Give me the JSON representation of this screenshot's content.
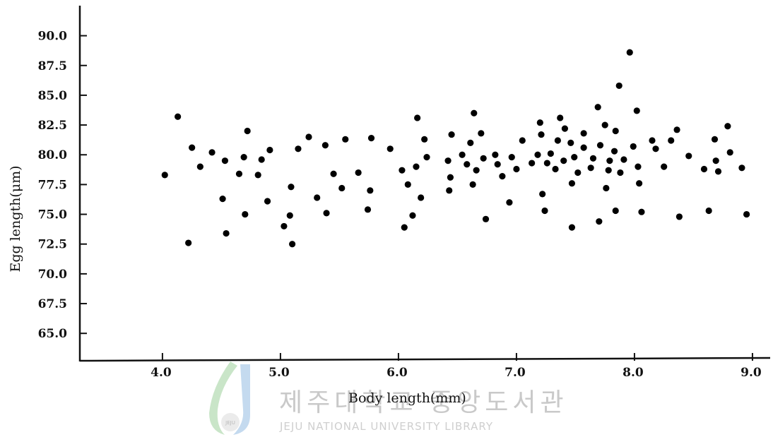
{
  "chart_data": {
    "type": "scatter",
    "xlabel": "Body length(mm)",
    "ylabel": "Egg length(μm)",
    "xlim": [
      3.3,
      9.15
    ],
    "ylim": [
      62.7,
      93.0
    ],
    "xticks": [
      4.0,
      5.0,
      6.0,
      7.0,
      8.0,
      9.0
    ],
    "xtick_labels": [
      "4.0",
      "5.0",
      "6.0",
      "7.0",
      "8.0",
      "9.0"
    ],
    "yticks": [
      65.0,
      67.5,
      70.0,
      72.5,
      75.0,
      77.5,
      80.0,
      82.5,
      85.0,
      87.5,
      90.0
    ],
    "ytick_labels": [
      "65.0",
      "67.5",
      "70.0",
      "72.5",
      "75.0",
      "77.5",
      "80.0",
      "82.5",
      "85.0",
      "87.5",
      "90.0"
    ],
    "grid": false,
    "marker_color": "#000000",
    "points": [
      [
        4.02,
        78.3
      ],
      [
        4.13,
        83.2
      ],
      [
        4.22,
        72.6
      ],
      [
        4.25,
        80.6
      ],
      [
        4.32,
        79.0
      ],
      [
        4.42,
        80.2
      ],
      [
        4.51,
        76.3
      ],
      [
        4.53,
        79.5
      ],
      [
        4.54,
        73.4
      ],
      [
        4.65,
        78.4
      ],
      [
        4.69,
        79.8
      ],
      [
        4.7,
        75.0
      ],
      [
        4.72,
        82.0
      ],
      [
        4.81,
        78.3
      ],
      [
        4.84,
        79.6
      ],
      [
        4.89,
        76.1
      ],
      [
        4.91,
        80.4
      ],
      [
        5.03,
        74.0
      ],
      [
        5.08,
        74.9
      ],
      [
        5.09,
        77.3
      ],
      [
        5.1,
        72.5
      ],
      [
        5.15,
        80.5
      ],
      [
        5.24,
        81.5
      ],
      [
        5.31,
        76.4
      ],
      [
        5.38,
        80.8
      ],
      [
        5.39,
        75.1
      ],
      [
        5.45,
        78.4
      ],
      [
        5.52,
        77.2
      ],
      [
        5.55,
        81.3
      ],
      [
        5.66,
        78.5
      ],
      [
        5.74,
        75.4
      ],
      [
        5.76,
        77.0
      ],
      [
        5.77,
        81.4
      ],
      [
        5.93,
        80.5
      ],
      [
        6.03,
        78.7
      ],
      [
        6.05,
        73.9
      ],
      [
        6.08,
        77.5
      ],
      [
        6.12,
        74.9
      ],
      [
        6.15,
        79.0
      ],
      [
        6.16,
        83.1
      ],
      [
        6.19,
        76.4
      ],
      [
        6.22,
        81.3
      ],
      [
        6.24,
        79.8
      ],
      [
        6.42,
        79.5
      ],
      [
        6.43,
        77.0
      ],
      [
        6.44,
        78.1
      ],
      [
        6.45,
        81.7
      ],
      [
        6.54,
        80.0
      ],
      [
        6.58,
        79.2
      ],
      [
        6.61,
        81.0
      ],
      [
        6.63,
        77.5
      ],
      [
        6.64,
        83.5
      ],
      [
        6.66,
        78.7
      ],
      [
        6.7,
        81.8
      ],
      [
        6.72,
        79.7
      ],
      [
        6.74,
        74.6
      ],
      [
        6.82,
        80.0
      ],
      [
        6.84,
        79.2
      ],
      [
        6.88,
        78.2
      ],
      [
        6.94,
        76.0
      ],
      [
        6.96,
        79.8
      ],
      [
        7.0,
        78.8
      ],
      [
        7.05,
        81.2
      ],
      [
        7.13,
        79.3
      ],
      [
        7.18,
        80.0
      ],
      [
        7.2,
        82.7
      ],
      [
        7.21,
        81.7
      ],
      [
        7.22,
        76.7
      ],
      [
        7.24,
        75.3
      ],
      [
        7.26,
        79.3
      ],
      [
        7.29,
        80.1
      ],
      [
        7.33,
        78.8
      ],
      [
        7.35,
        81.2
      ],
      [
        7.37,
        83.1
      ],
      [
        7.4,
        79.5
      ],
      [
        7.41,
        82.2
      ],
      [
        7.46,
        81.0
      ],
      [
        7.47,
        77.6
      ],
      [
        7.47,
        73.9
      ],
      [
        7.49,
        79.8
      ],
      [
        7.52,
        78.5
      ],
      [
        7.57,
        81.8
      ],
      [
        7.57,
        80.6
      ],
      [
        7.63,
        78.9
      ],
      [
        7.65,
        79.7
      ],
      [
        7.69,
        84.0
      ],
      [
        7.7,
        74.4
      ],
      [
        7.71,
        80.8
      ],
      [
        7.75,
        82.5
      ],
      [
        7.76,
        77.2
      ],
      [
        7.78,
        78.7
      ],
      [
        7.79,
        79.5
      ],
      [
        7.83,
        80.3
      ],
      [
        7.84,
        82.0
      ],
      [
        7.84,
        75.3
      ],
      [
        7.87,
        85.8
      ],
      [
        7.88,
        78.5
      ],
      [
        7.91,
        79.6
      ],
      [
        7.96,
        88.6
      ],
      [
        7.99,
        80.7
      ],
      [
        8.02,
        83.7
      ],
      [
        8.03,
        79.0
      ],
      [
        8.04,
        77.6
      ],
      [
        8.06,
        75.2
      ],
      [
        8.15,
        81.2
      ],
      [
        8.18,
        80.5
      ],
      [
        8.25,
        79.0
      ],
      [
        8.31,
        81.2
      ],
      [
        8.36,
        82.1
      ],
      [
        8.38,
        74.8
      ],
      [
        8.46,
        79.9
      ],
      [
        8.59,
        78.8
      ],
      [
        8.63,
        75.3
      ],
      [
        8.68,
        81.3
      ],
      [
        8.69,
        79.5
      ],
      [
        8.71,
        78.6
      ],
      [
        8.79,
        82.4
      ],
      [
        8.81,
        80.2
      ],
      [
        8.91,
        78.9
      ],
      [
        8.95,
        75.0
      ]
    ]
  },
  "watermark": {
    "title": "제주대학교 중앙도서관",
    "subtitle": "JEJU NATIONAL UNIVERSITY LIBRARY",
    "badge": "JEJU",
    "colors": {
      "green": "#9ccf9a",
      "blue": "#9cc1e4",
      "gray": "#c9c9c9"
    }
  }
}
